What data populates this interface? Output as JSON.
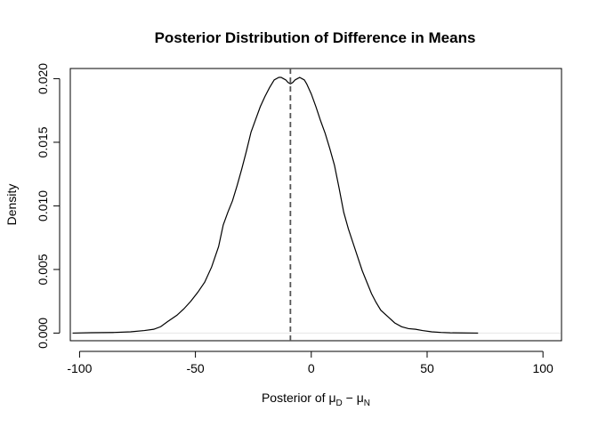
{
  "chart_data": {
    "type": "line",
    "title": "Posterior Distribution of Difference in Means",
    "xlabel": {
      "prefix": "Posterior of ",
      "symbol": "μ",
      "sub1": "D",
      "minus": " − ",
      "sub2": "N"
    },
    "ylabel": "Density",
    "xlim": [
      -104,
      108
    ],
    "ylim": [
      -0.0006,
      0.0208
    ],
    "x_ticks": [
      -100,
      -50,
      0,
      50,
      100
    ],
    "x_tick_labels": [
      "-100",
      "-50",
      "0",
      "50",
      "100"
    ],
    "y_ticks": [
      0.0,
      0.005,
      0.01,
      0.015,
      0.02
    ],
    "y_tick_labels": [
      "0.000",
      "0.005",
      "0.010",
      "0.015",
      "0.020"
    ],
    "reference_line": {
      "x": -9,
      "style": "dashed",
      "color": "#555555"
    },
    "zero_line": {
      "y": 0,
      "color": "#e6e6e6"
    },
    "grid": false,
    "legend": "none",
    "line_color": "#000000",
    "series": [
      {
        "x": [
          -103,
          -95,
          -85,
          -78,
          -72,
          -68,
          -65,
          -62,
          -58,
          -55,
          -52,
          -49,
          -46,
          -43,
          -40,
          -38,
          -36,
          -34,
          -32,
          -30,
          -28,
          -26,
          -24,
          -22,
          -20,
          -18,
          -16,
          -14,
          -13,
          -12,
          -11,
          -10,
          -9,
          -8,
          -7,
          -6,
          -5,
          -4,
          -3,
          -2,
          0,
          2,
          4,
          6,
          8,
          10,
          12,
          14,
          16,
          18,
          20,
          22,
          24,
          26,
          28,
          30,
          33,
          36,
          39,
          42,
          45,
          48,
          52,
          56,
          60,
          65,
          72
        ],
        "y": [
          0.0,
          3e-05,
          5e-05,
          0.0001,
          0.0002,
          0.0003,
          0.0005,
          0.0009,
          0.0014,
          0.0019,
          0.0025,
          0.0032,
          0.004,
          0.0052,
          0.0068,
          0.0085,
          0.0095,
          0.0104,
          0.0116,
          0.0129,
          0.0143,
          0.0158,
          0.0168,
          0.0178,
          0.0186,
          0.0193,
          0.0199,
          0.0201,
          0.0201,
          0.02,
          0.0199,
          0.0197,
          0.0196,
          0.0197,
          0.0199,
          0.02,
          0.0201,
          0.02,
          0.0199,
          0.0196,
          0.0188,
          0.0178,
          0.0167,
          0.0157,
          0.0145,
          0.0132,
          0.0114,
          0.0095,
          0.0082,
          0.0071,
          0.006,
          0.0049,
          0.004,
          0.0031,
          0.0024,
          0.0018,
          0.0013,
          0.0008,
          0.0005,
          0.00035,
          0.0003,
          0.0002,
          0.0001,
          5e-05,
          2e-05,
          1e-05,
          0.0
        ]
      }
    ]
  }
}
